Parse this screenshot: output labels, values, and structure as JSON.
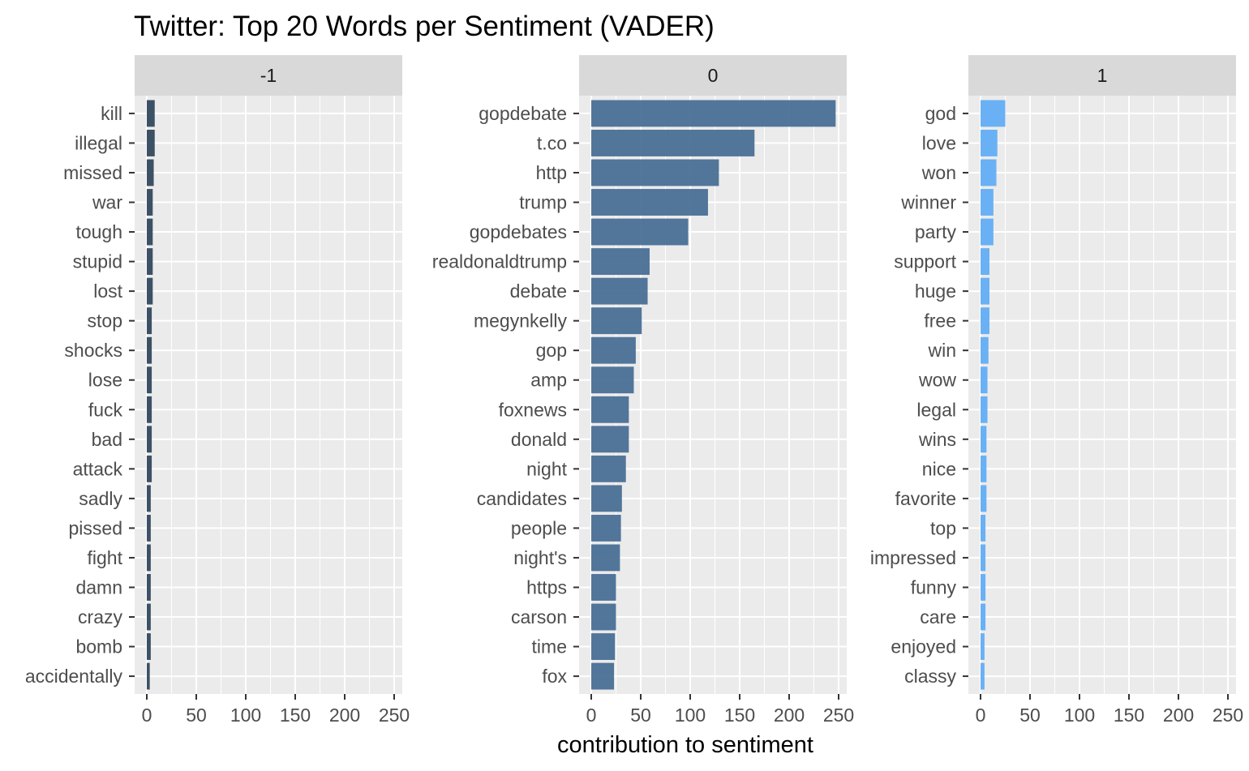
{
  "chart_data": {
    "type": "bar",
    "orientation": "horizontal",
    "title": "Twitter: Top 20 Words per Sentiment (VADER)",
    "xlabel": "contribution to sentiment",
    "ylabel": "",
    "xlim": [
      0,
      250
    ],
    "xticks": [
      0,
      50,
      100,
      150,
      200,
      250
    ],
    "grid": true,
    "legend": "none",
    "facets": [
      {
        "label": "-1",
        "color": "#34495e",
        "categories": [
          "kill",
          "illegal",
          "missed",
          "war",
          "tough",
          "stupid",
          "lost",
          "stop",
          "shocks",
          "lose",
          "fuck",
          "bad",
          "attack",
          "sadly",
          "pissed",
          "fight",
          "damn",
          "crazy",
          "bomb",
          "accidentally"
        ],
        "values": [
          8,
          8,
          7,
          6,
          6,
          6,
          6,
          5,
          5,
          5,
          5,
          5,
          5,
          4,
          4,
          4,
          4,
          4,
          4,
          3
        ]
      },
      {
        "label": "0",
        "color": "#4a6f96",
        "categories": [
          "gopdebate",
          "t.co",
          "http",
          "trump",
          "gopdebates",
          "realdonaldtrump",
          "debate",
          "megynkelly",
          "gop",
          "amp",
          "foxnews",
          "donald",
          "night",
          "candidates",
          "people",
          "night's",
          "https",
          "carson",
          "time",
          "fox"
        ],
        "values": [
          247,
          165,
          129,
          118,
          98,
          59,
          57,
          51,
          45,
          43,
          38,
          38,
          35,
          31,
          30,
          29,
          25,
          25,
          24,
          23
        ]
      },
      {
        "label": "1",
        "color": "#63adf4",
        "categories": [
          "god",
          "love",
          "won",
          "winner",
          "party",
          "support",
          "huge",
          "free",
          "win",
          "wow",
          "legal",
          "wins",
          "nice",
          "favorite",
          "top",
          "impressed",
          "funny",
          "care",
          "enjoyed",
          "classy"
        ],
        "values": [
          25,
          17,
          16,
          13,
          13,
          9,
          9,
          9,
          8,
          7,
          7,
          6,
          6,
          6,
          5,
          5,
          5,
          5,
          4,
          4
        ]
      }
    ]
  }
}
